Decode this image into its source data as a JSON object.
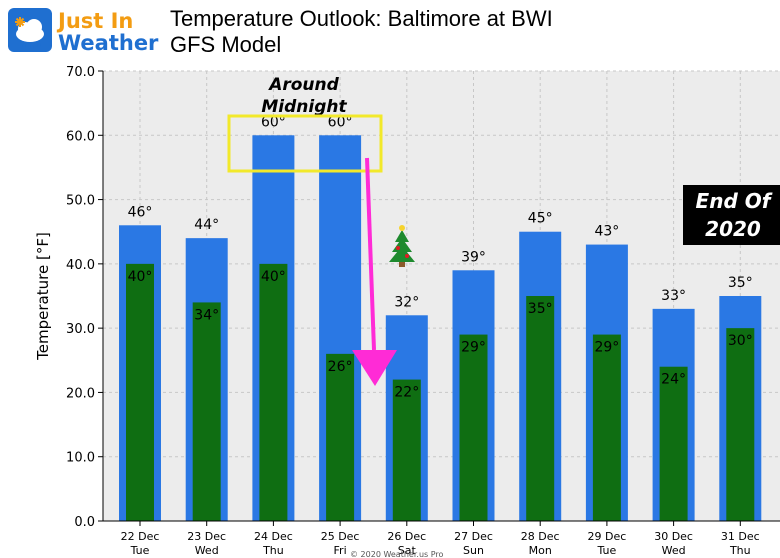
{
  "brand": {
    "line1": "Just In",
    "line2": "Weather",
    "icon": "snowflake-cloud-icon"
  },
  "title": {
    "line1": "Temperature Outlook: Baltimore at BWI",
    "line2": "GFS Model"
  },
  "chart_data": {
    "type": "bar",
    "ylabel": "Temperature [°F]",
    "ylim": [
      0,
      70
    ],
    "yticks": [
      "0.0",
      "10.0",
      "20.0",
      "30.0",
      "40.0",
      "50.0",
      "60.0",
      "70.0"
    ],
    "grid": true,
    "categories": [
      {
        "date": "22 Dec",
        "day": "Tue"
      },
      {
        "date": "23 Dec",
        "day": "Wed"
      },
      {
        "date": "24 Dec",
        "day": "Thu"
      },
      {
        "date": "25 Dec",
        "day": "Fri"
      },
      {
        "date": "26 Dec",
        "day": "Sat"
      },
      {
        "date": "27 Dec",
        "day": "Sun"
      },
      {
        "date": "28 Dec",
        "day": "Mon"
      },
      {
        "date": "29 Dec",
        "day": "Tue"
      },
      {
        "date": "30 Dec",
        "day": "Wed"
      },
      {
        "date": "31 Dec",
        "day": "Thu"
      }
    ],
    "series": [
      {
        "values": [
          46,
          44,
          60,
          60,
          32,
          39,
          45,
          43,
          33,
          35
        ],
        "color": "#2a78e4",
        "labels": [
          "46°",
          "44°",
          "60°",
          "60°",
          "32°",
          "39°",
          "45°",
          "43°",
          "33°",
          "35°"
        ]
      },
      {
        "values": [
          40,
          34,
          40,
          26,
          22,
          29,
          35,
          29,
          24,
          30
        ],
        "color": "#0f6e12",
        "labels": [
          "40°",
          "34°",
          "40°",
          "26°",
          "22°",
          "29°",
          "35°",
          "29°",
          "24°",
          "30°"
        ]
      }
    ],
    "annotations": {
      "midnight_line1": "Around",
      "midnight_line2": "Midnight",
      "end_of_line1": "End Of",
      "end_of_line2": "2020",
      "tree_icon": "christmas-tree-icon",
      "arrow_color": "#ff2bd6",
      "highlight_color": "#f2e92a"
    },
    "footer": "© 2020 Weather.us Pro"
  }
}
